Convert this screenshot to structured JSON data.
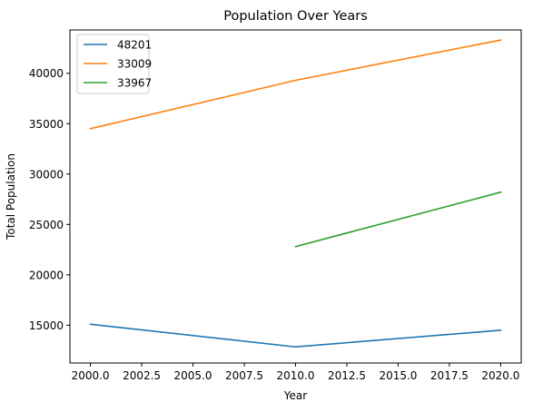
{
  "chart_data": {
    "type": "line",
    "title": "Population Over Years",
    "xlabel": "Year",
    "ylabel": "Total Population",
    "x_ticks": [
      "2000.0",
      "2002.5",
      "2005.0",
      "2007.5",
      "2010.0",
      "2012.5",
      "2015.0",
      "2017.5",
      "2020.0"
    ],
    "y_ticks": [
      "15000",
      "20000",
      "25000",
      "30000",
      "35000",
      "40000"
    ],
    "xlim": [
      1999,
      2021
    ],
    "ylim": [
      11250,
      44300
    ],
    "grid": false,
    "legend_position": "top-left",
    "series": [
      {
        "name": "48201",
        "color": "#1f77b4",
        "x": [
          2000,
          2010,
          2020
        ],
        "y": [
          15100,
          12850,
          14500
        ]
      },
      {
        "name": "33009",
        "color": "#ff7f0e",
        "x": [
          2000,
          2010,
          2020
        ],
        "y": [
          34500,
          39300,
          43300
        ]
      },
      {
        "name": "33967",
        "color": "#2ca02c",
        "x": [
          2010,
          2020
        ],
        "y": [
          22800,
          28200
        ]
      }
    ]
  }
}
